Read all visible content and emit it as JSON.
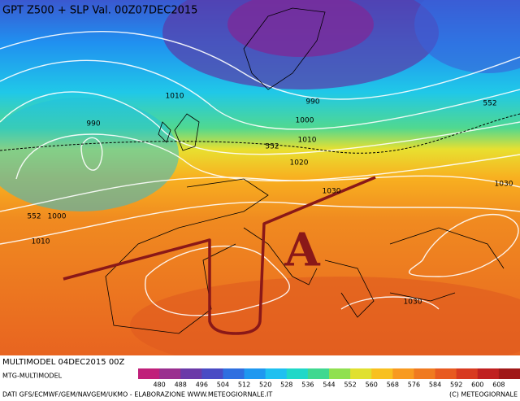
{
  "header": {
    "title": "GPT Z500 + SLP Val. 00Z07DEC2015"
  },
  "map": {
    "contour_labels": [
      "990",
      "1010",
      "990",
      "1000",
      "1010",
      "552",
      "1020",
      "1030",
      "552",
      "1000",
      "1010",
      "1030",
      "1030",
      "552"
    ],
    "high_symbol": "A"
  },
  "footer": {
    "run": "MULTIMODEL 04DEC2015 00Z",
    "model": "MTG-MULTIMODEL",
    "credits": "DATI GFS/ECMWF/GEM/NAVGEM/UKMO - ELABORAZIONE WWW.METEOGIORNALE.IT",
    "copyright": "(C) METEOGIORNALE"
  },
  "colorbar": {
    "ticks": [
      480,
      488,
      496,
      504,
      512,
      520,
      528,
      536,
      544,
      552,
      560,
      568,
      576,
      584,
      592,
      600,
      608
    ],
    "colors": [
      "#c0207a",
      "#9a2f8f",
      "#6b3aa8",
      "#4a4bc4",
      "#2f6fe0",
      "#1f98f0",
      "#1fc0f0",
      "#20d8c8",
      "#40d890",
      "#90e050",
      "#e0e030",
      "#f8c020",
      "#f89a20",
      "#f07a20",
      "#e85a20",
      "#d83a20",
      "#c02020",
      "#a01818"
    ]
  }
}
